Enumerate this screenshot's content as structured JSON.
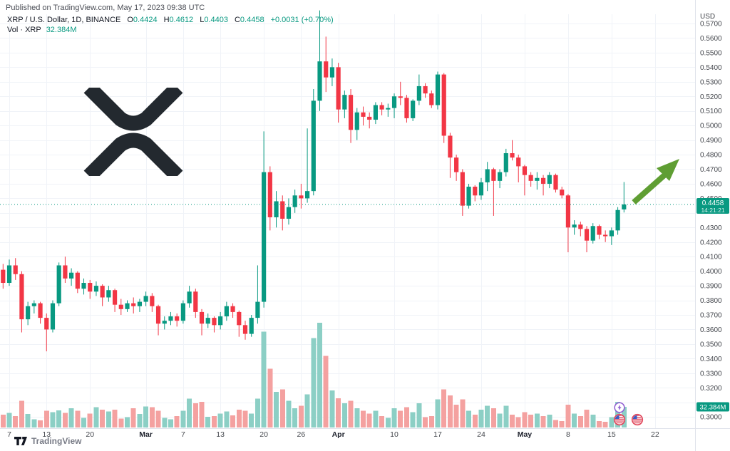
{
  "header": {
    "published": "Published on TradingView.com, May 17, 2023 09:38 UTC",
    "symbol": "XRP / U.S. Dollar, 1D, BINANCE",
    "ohlc": {
      "o_label": "O",
      "o": "0.4424",
      "h_label": "H",
      "h": "0.4612",
      "l_label": "L",
      "l": "0.4403",
      "c_label": "C",
      "c": "0.4458",
      "change": "+0.0031 (+0.70%)"
    },
    "vol_label": "Vol · XRP",
    "vol_value": "32.384M"
  },
  "badges": {
    "price": "0.4458",
    "countdown": "14:21:21",
    "volume": "32.384M"
  },
  "axis": {
    "currency_label": "USD",
    "price_ticks": [
      "0.5700",
      "0.5600",
      "0.5500",
      "0.5400",
      "0.5300",
      "0.5200",
      "0.5100",
      "0.5000",
      "0.4900",
      "0.4800",
      "0.4700",
      "0.4600",
      "0.4500",
      "0.4300",
      "0.4200",
      "0.4100",
      "0.4000",
      "0.3900",
      "0.3800",
      "0.3700",
      "0.3600",
      "0.3500",
      "0.3400",
      "0.3300",
      "0.3200",
      "0.3000"
    ],
    "x_ticks": [
      {
        "label": "7",
        "i": 1
      },
      {
        "label": "13",
        "i": 7
      },
      {
        "label": "20",
        "i": 14
      },
      {
        "label": "Mar",
        "i": 23,
        "bold": true
      },
      {
        "label": "7",
        "i": 29
      },
      {
        "label": "13",
        "i": 35
      },
      {
        "label": "20",
        "i": 42
      },
      {
        "label": "26",
        "i": 48
      },
      {
        "label": "Apr",
        "i": 54,
        "bold": true
      },
      {
        "label": "10",
        "i": 63
      },
      {
        "label": "17",
        "i": 70
      },
      {
        "label": "24",
        "i": 77
      },
      {
        "label": "May",
        "i": 84,
        "bold": true
      },
      {
        "label": "8",
        "i": 91
      },
      {
        "label": "15",
        "i": 98
      },
      {
        "label": "22",
        "i": 105
      }
    ]
  },
  "colors": {
    "up": "#089981",
    "down": "#f23645",
    "vol_up": "#8ccfc5",
    "vol_down": "#f4a1a0",
    "badge": "#089981",
    "grid": "#f0f3f8",
    "axis_text": "#44474d",
    "axis_text_bold": "#1e222d",
    "separator": "#e0e3eb",
    "arrow": "#5f9e33",
    "logo": "#23292f"
  },
  "annotation": {
    "name": "green-up-arrow"
  },
  "event_markers": [
    {
      "name": "crypto-event-icon",
      "style": "purple-lightning"
    },
    {
      "name": "us-economic-event-icon",
      "style": "us-flag"
    },
    {
      "name": "us-economic-event-icon",
      "style": "us-flag"
    }
  ],
  "footer": {
    "brand": "TradingView"
  },
  "chart_data": {
    "type": "candlestick",
    "symbol": "XRP/USD",
    "interval": "1D",
    "exchange": "BINANCE",
    "ylabel": "USD",
    "ylim": [
      0.3,
      0.57
    ],
    "grid": true,
    "start_date": "Feb 6, 2023",
    "end_date": "May 17, 2023",
    "last_price": 0.4458,
    "columns": [
      "open",
      "high",
      "low",
      "close",
      "volume_millions"
    ],
    "candles": [
      [
        0.401,
        0.405,
        0.388,
        0.392,
        20
      ],
      [
        0.392,
        0.408,
        0.39,
        0.404,
        23
      ],
      [
        0.404,
        0.409,
        0.394,
        0.398,
        18
      ],
      [
        0.398,
        0.4,
        0.358,
        0.367,
        42
      ],
      [
        0.367,
        0.379,
        0.363,
        0.376,
        21
      ],
      [
        0.376,
        0.38,
        0.371,
        0.378,
        13
      ],
      [
        0.378,
        0.379,
        0.364,
        0.368,
        11
      ],
      [
        0.368,
        0.371,
        0.345,
        0.36,
        26
      ],
      [
        0.36,
        0.38,
        0.358,
        0.378,
        24
      ],
      [
        0.378,
        0.406,
        0.376,
        0.404,
        27
      ],
      [
        0.404,
        0.41,
        0.392,
        0.395,
        23
      ],
      [
        0.395,
        0.402,
        0.39,
        0.399,
        30
      ],
      [
        0.399,
        0.4,
        0.385,
        0.388,
        26
      ],
      [
        0.388,
        0.395,
        0.384,
        0.392,
        15
      ],
      [
        0.392,
        0.394,
        0.381,
        0.386,
        22
      ],
      [
        0.386,
        0.393,
        0.383,
        0.39,
        32
      ],
      [
        0.39,
        0.391,
        0.376,
        0.382,
        28
      ],
      [
        0.382,
        0.39,
        0.379,
        0.387,
        25
      ],
      [
        0.387,
        0.388,
        0.372,
        0.377,
        28
      ],
      [
        0.377,
        0.381,
        0.37,
        0.374,
        14
      ],
      [
        0.374,
        0.38,
        0.372,
        0.378,
        16
      ],
      [
        0.378,
        0.382,
        0.371,
        0.376,
        30
      ],
      [
        0.376,
        0.381,
        0.372,
        0.379,
        21
      ],
      [
        0.379,
        0.386,
        0.376,
        0.383,
        33
      ],
      [
        0.383,
        0.385,
        0.372,
        0.376,
        32
      ],
      [
        0.376,
        0.377,
        0.356,
        0.364,
        26
      ],
      [
        0.364,
        0.369,
        0.36,
        0.366,
        15
      ],
      [
        0.366,
        0.372,
        0.363,
        0.369,
        13
      ],
      [
        0.369,
        0.371,
        0.362,
        0.366,
        18
      ],
      [
        0.366,
        0.38,
        0.364,
        0.378,
        26
      ],
      [
        0.378,
        0.39,
        0.375,
        0.386,
        45
      ],
      [
        0.386,
        0.388,
        0.368,
        0.372,
        38
      ],
      [
        0.372,
        0.374,
        0.356,
        0.364,
        40
      ],
      [
        0.364,
        0.371,
        0.361,
        0.368,
        17
      ],
      [
        0.368,
        0.369,
        0.358,
        0.363,
        18
      ],
      [
        0.363,
        0.372,
        0.36,
        0.369,
        22
      ],
      [
        0.369,
        0.379,
        0.366,
        0.376,
        25
      ],
      [
        0.376,
        0.378,
        0.368,
        0.372,
        19
      ],
      [
        0.372,
        0.373,
        0.355,
        0.363,
        28
      ],
      [
        0.363,
        0.366,
        0.353,
        0.357,
        26
      ],
      [
        0.357,
        0.37,
        0.355,
        0.368,
        22
      ],
      [
        0.368,
        0.404,
        0.364,
        0.379,
        45
      ],
      [
        0.379,
        0.496,
        0.375,
        0.468,
        150
      ],
      [
        0.468,
        0.472,
        0.428,
        0.437,
        92
      ],
      [
        0.437,
        0.455,
        0.43,
        0.448,
        56
      ],
      [
        0.448,
        0.452,
        0.428,
        0.436,
        60
      ],
      [
        0.436,
        0.45,
        0.432,
        0.444,
        42
      ],
      [
        0.444,
        0.456,
        0.44,
        0.452,
        30
      ],
      [
        0.452,
        0.46,
        0.443,
        0.45,
        34
      ],
      [
        0.45,
        0.498,
        0.447,
        0.455,
        52
      ],
      [
        0.455,
        0.525,
        0.452,
        0.517,
        140
      ],
      [
        0.517,
        0.579,
        0.51,
        0.544,
        164
      ],
      [
        0.544,
        0.561,
        0.523,
        0.533,
        112
      ],
      [
        0.533,
        0.546,
        0.527,
        0.54,
        58
      ],
      [
        0.54,
        0.543,
        0.502,
        0.511,
        46
      ],
      [
        0.511,
        0.524,
        0.505,
        0.521,
        38
      ],
      [
        0.521,
        0.525,
        0.488,
        0.497,
        42
      ],
      [
        0.497,
        0.512,
        0.49,
        0.509,
        30
      ],
      [
        0.509,
        0.513,
        0.5,
        0.506,
        26
      ],
      [
        0.506,
        0.509,
        0.498,
        0.504,
        22
      ],
      [
        0.504,
        0.516,
        0.501,
        0.514,
        26
      ],
      [
        0.514,
        0.516,
        0.507,
        0.511,
        18
      ],
      [
        0.511,
        0.515,
        0.506,
        0.512,
        15
      ],
      [
        0.512,
        0.522,
        0.505,
        0.52,
        30
      ],
      [
        0.52,
        0.53,
        0.514,
        0.519,
        26
      ],
      [
        0.519,
        0.521,
        0.502,
        0.505,
        32
      ],
      [
        0.505,
        0.518,
        0.503,
        0.517,
        24
      ],
      [
        0.517,
        0.535,
        0.514,
        0.527,
        38
      ],
      [
        0.527,
        0.529,
        0.519,
        0.522,
        16
      ],
      [
        0.522,
        0.524,
        0.512,
        0.514,
        18
      ],
      [
        0.514,
        0.537,
        0.511,
        0.535,
        44
      ],
      [
        0.535,
        0.536,
        0.488,
        0.493,
        60
      ],
      [
        0.493,
        0.495,
        0.464,
        0.478,
        50
      ],
      [
        0.478,
        0.48,
        0.462,
        0.468,
        36
      ],
      [
        0.468,
        0.47,
        0.438,
        0.445,
        44
      ],
      [
        0.445,
        0.46,
        0.443,
        0.458,
        26
      ],
      [
        0.458,
        0.459,
        0.448,
        0.452,
        20
      ],
      [
        0.452,
        0.464,
        0.449,
        0.461,
        28
      ],
      [
        0.461,
        0.475,
        0.455,
        0.47,
        34
      ],
      [
        0.47,
        0.471,
        0.438,
        0.462,
        30
      ],
      [
        0.462,
        0.47,
        0.457,
        0.468,
        22
      ],
      [
        0.468,
        0.484,
        0.465,
        0.481,
        34
      ],
      [
        0.481,
        0.49,
        0.476,
        0.478,
        20
      ],
      [
        0.478,
        0.48,
        0.461,
        0.472,
        16
      ],
      [
        0.472,
        0.473,
        0.452,
        0.466,
        24
      ],
      [
        0.466,
        0.468,
        0.458,
        0.462,
        20
      ],
      [
        0.462,
        0.468,
        0.456,
        0.464,
        22
      ],
      [
        0.464,
        0.466,
        0.452,
        0.46,
        18
      ],
      [
        0.46,
        0.468,
        0.457,
        0.466,
        20
      ],
      [
        0.466,
        0.467,
        0.454,
        0.456,
        12
      ],
      [
        0.456,
        0.458,
        0.45,
        0.452,
        10
      ],
      [
        0.452,
        0.453,
        0.413,
        0.43,
        36
      ],
      [
        0.43,
        0.435,
        0.425,
        0.432,
        22
      ],
      [
        0.432,
        0.434,
        0.424,
        0.429,
        18
      ],
      [
        0.429,
        0.431,
        0.413,
        0.421,
        28
      ],
      [
        0.421,
        0.433,
        0.419,
        0.431,
        20
      ],
      [
        0.431,
        0.432,
        0.422,
        0.425,
        10
      ],
      [
        0.425,
        0.428,
        0.42,
        0.424,
        9
      ],
      [
        0.424,
        0.43,
        0.418,
        0.428,
        16
      ],
      [
        0.428,
        0.444,
        0.425,
        0.442,
        40
      ],
      [
        0.4424,
        0.4612,
        0.4403,
        0.4458,
        32.384
      ]
    ]
  }
}
